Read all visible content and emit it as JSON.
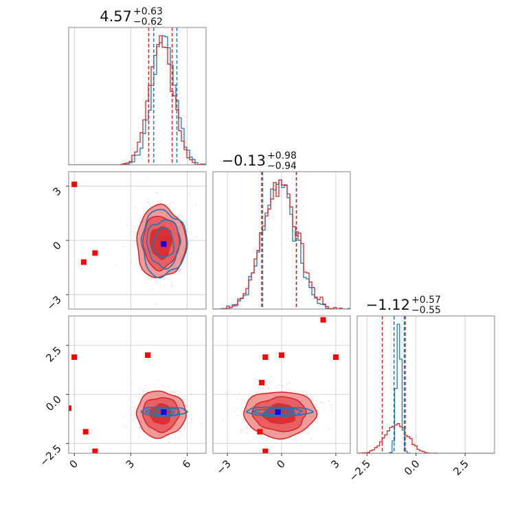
{
  "chart_data": {
    "type": "corner",
    "grid": true,
    "colors": {
      "blue": "#1f77b4",
      "red": "#d62728",
      "red_light": "#f08a8a",
      "red_mid": "#e8565a",
      "marker_red": "#ff0000",
      "marker_blue": "#0000ff"
    },
    "parameters": [
      {
        "range": [
          -0.3,
          7.0
        ],
        "ticks": [
          0,
          3,
          6
        ],
        "tick_labels": [
          "0",
          "3",
          "6"
        ],
        "title": {
          "value": "4.57",
          "plus": "+0.63",
          "minus": "−0.62"
        }
      },
      {
        "range": [
          -3.8,
          3.8
        ],
        "ticks": [
          -3,
          0,
          3
        ],
        "tick_labels": [
          "−3",
          "0",
          "3"
        ],
        "title": {
          "value": "−0.13",
          "plus": "+0.98",
          "minus": "−0.94"
        }
      },
      {
        "range": [
          -3.0,
          4.0
        ],
        "ticks": [
          -2.5,
          0.0,
          2.5
        ],
        "tick_labels": [
          "−2.5",
          "0.0",
          "2.5"
        ],
        "title": {
          "value": "−1.12",
          "plus": "+0.57",
          "minus": "−0.55"
        }
      }
    ],
    "diag_quantiles": [
      {
        "blue": [
          4.22,
          5.45
        ],
        "red": [
          3.95,
          5.2
        ]
      },
      {
        "blue": [
          -1.05,
          0.82
        ],
        "red": [
          -1.1,
          0.82
        ]
      },
      {
        "blue": [
          -1.12,
          -0.6
        ],
        "red": [
          -1.72,
          -0.55
        ]
      }
    ],
    "truth_marker": {
      "x": [
        4.75,
        -0.2,
        -0.9
      ]
    },
    "outliers": {
      "p0_p1": [
        [
          0.0,
          3.1
        ],
        [
          0.5,
          -1.2
        ],
        [
          1.1,
          -0.7
        ]
      ],
      "p0_p2": [
        [
          0.0,
          1.9
        ],
        [
          0.6,
          -1.9
        ],
        [
          1.1,
          -2.9
        ],
        [
          3.9,
          2.0
        ],
        [
          -0.3,
          -0.7
        ]
      ],
      "p1_p2": [
        [
          2.3,
          3.8
        ],
        [
          3.0,
          1.9
        ],
        [
          -0.9,
          1.9
        ],
        [
          0.0,
          2.0
        ],
        [
          -1.1,
          0.6
        ],
        [
          -1.2,
          -1.9
        ],
        [
          -0.9,
          -2.9
        ]
      ]
    },
    "red_samples": {
      "mean": [
        4.6,
        -0.1,
        -1.0
      ],
      "sd": [
        0.62,
        0.95,
        0.56
      ]
    },
    "blue_samples": {
      "mean": [
        4.75,
        -0.15,
        -0.88
      ],
      "sd": [
        0.6,
        0.9,
        0.12
      ]
    }
  }
}
